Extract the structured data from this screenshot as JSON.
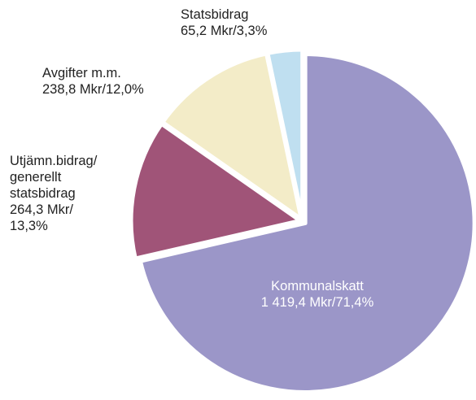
{
  "chart_data": {
    "type": "pie",
    "categories": [
      "Kommunalskatt",
      "Utjämn.bidrag/ generellt statsbidrag",
      "Avgifter m.m.",
      "Statsbidrag"
    ],
    "values": [
      71.4,
      13.3,
      12.0,
      3.3
    ],
    "value_labels": [
      "1 419,4 Mkr/71,4%",
      "264,3 Mkr/ 13,3%",
      "238,8 Mkr/12,0%",
      "65,2 Mkr/3,3%"
    ],
    "colors": [
      "#9b96c8",
      "#a05478",
      "#f3ecc8",
      "#bfdff0"
    ]
  }
}
